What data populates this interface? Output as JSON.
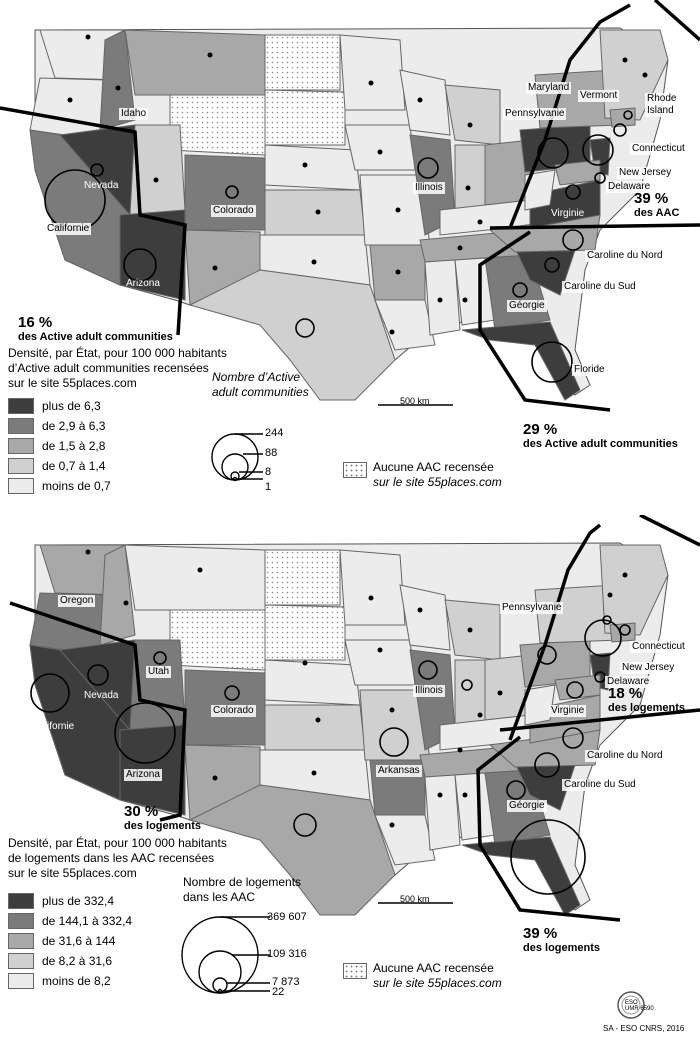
{
  "colors": {
    "class1": "#3d3d3d",
    "class2": "#7b7b7b",
    "class3": "#a8a8a8",
    "class4": "#d0d0d0",
    "class5": "#ececec"
  },
  "top_map": {
    "legend_title_lines": [
      "Densité, par État, pour 100 000 habitants",
      "d’Active adult communities recensées",
      "sur le site 55places.com"
    ],
    "classes": [
      "plus de 6,3",
      "de 2,9 à 6,3",
      "de 1,5 à 2,8",
      "de 0,7 à 1,4",
      "moins de 0,7"
    ],
    "circle_title_lines": [
      "Nombre d’Active",
      "adult communities"
    ],
    "circle_values": [
      "244",
      "88",
      "8",
      "1"
    ],
    "none_label_lines": [
      "Aucune AAC recensée",
      "sur le site 55places.com"
    ],
    "scale": "500 km",
    "zone_west": {
      "pct": "16 %",
      "text": "des Active adult communities"
    },
    "zone_northeast": {
      "pct": "39 %",
      "text": "des AAC"
    },
    "zone_south": {
      "pct": "29 %",
      "text": "des Active adult communities"
    },
    "state_labels": {
      "idaho": "Idaho",
      "nevada": "Nevada",
      "california": "Californie",
      "arizona": "Arizona",
      "colorado": "Colorado",
      "illinois": "Illinois",
      "maryland": "Maryland",
      "vermont": "Vermont",
      "rhode_island_1": "Rhode",
      "rhode_island_2": "Island",
      "pennsylvania": "Pennsylvanie",
      "connecticut": "Connecticut",
      "new_jersey": "New Jersey",
      "delaware": "Delaware",
      "virginia": "Virginie",
      "north_carolina": "Caroline du Nord",
      "south_carolina": "Caroline du Sud",
      "georgia": "Géorgie",
      "florida": "Floride"
    }
  },
  "bottom_map": {
    "legend_title_lines": [
      "Densité, par État, pour 100 000 habitants",
      "de logements dans les AAC recensées",
      "sur le site 55places.com"
    ],
    "classes": [
      "plus de 332,4",
      "de 144,1 à 332,4",
      "de 31,6 à 144",
      "de 8,2 à 31,6",
      "moins de 8,2"
    ],
    "circle_title_lines": [
      "Nombre de logements",
      "dans les AAC"
    ],
    "circle_values": [
      "369 607",
      "109 316",
      "7 873",
      "22"
    ],
    "none_label_lines": [
      "Aucune AAC recensée",
      "sur le site 55places.com"
    ],
    "scale": "500 km",
    "zone_west": {
      "pct": "30 %",
      "text": "des logements"
    },
    "zone_northeast": {
      "pct": "18 %",
      "text": "des logements"
    },
    "zone_south": {
      "pct": "39 %",
      "text": "des logements"
    },
    "state_labels": {
      "oregon": "Oregon",
      "nevada": "Nevada",
      "utah": "Utah",
      "california": "Californie",
      "arizona": "Arizona",
      "colorado": "Colorado",
      "illinois": "Illinois",
      "arkansas": "Arkansas",
      "pennsylvania": "Pennsylvanie",
      "connecticut": "Connecticut",
      "new_jersey": "New Jersey",
      "delaware": "Delaware",
      "virginia": "Virginie",
      "north_carolina": "Caroline du Nord",
      "south_carolina": "Caroline du Sud",
      "georgia": "Géorgie"
    }
  },
  "credit": {
    "logo_lines": [
      "ESO",
      "UMR 6590"
    ],
    "text": "SA - ESO CNRS, 2016"
  }
}
